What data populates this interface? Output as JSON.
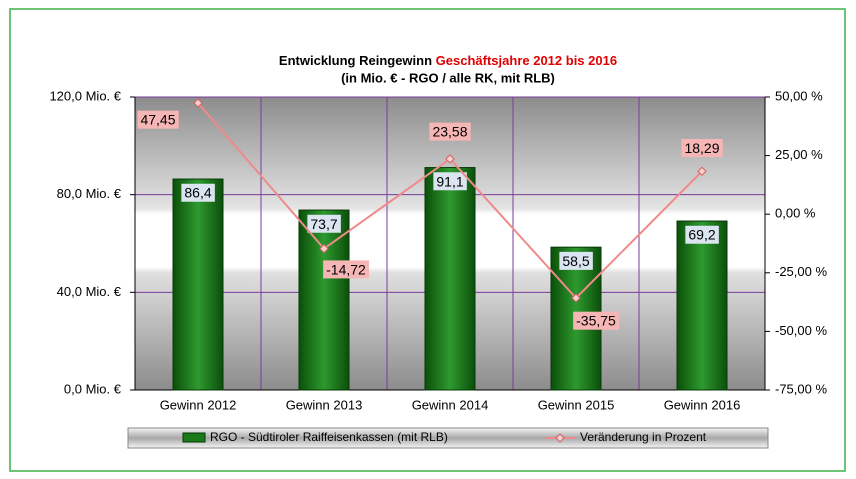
{
  "chart_data": {
    "type": "bar_line",
    "title": "Entwicklung Reingewinn",
    "title_highlight": "Geschäftsjahre 2012 bis 2016",
    "subtitle": "(in Mio. € - RGO / alle RK, mit RLB)",
    "categories": [
      "Gewinn 2012",
      "Gewinn 2013",
      "Gewinn 2014",
      "Gewinn 2015",
      "Gewinn 2016"
    ],
    "series": [
      {
        "name": "RGO - Südtiroler Raiffeisenkassen (mit RLB)",
        "type": "bar",
        "color": "#1a7a1a",
        "values": [
          86.4,
          73.7,
          91.1,
          58.5,
          69.2
        ],
        "value_labels": [
          "86,4",
          "73,7",
          "91,1",
          "58,5",
          "69,2"
        ]
      },
      {
        "name": "Veränderung in Prozent",
        "type": "line",
        "axis": "y2",
        "color": "#f08a8a",
        "values": [
          47.45,
          -14.72,
          23.58,
          -35.75,
          18.29
        ],
        "value_labels": [
          "47,45",
          "-14,72",
          "23,58",
          "-35,75",
          "18,29"
        ]
      }
    ],
    "ylim": [
      0,
      120
    ],
    "yticks": [
      {
        "value": 0,
        "label": "0,0 Mio. €"
      },
      {
        "value": 40,
        "label": "40,0 Mio. €"
      },
      {
        "value": 80,
        "label": "80,0 Mio. €"
      },
      {
        "value": 120,
        "label": "120,0 Mio. €"
      }
    ],
    "y2lim": [
      -75,
      50
    ],
    "y2ticks": [
      {
        "value": -75,
        "label": "-75,00 %"
      },
      {
        "value": -50,
        "label": "-50,00 %"
      },
      {
        "value": -25,
        "label": "-25,00 %"
      },
      {
        "value": 0,
        "label": "0,00 %"
      },
      {
        "value": 25,
        "label": "25,00 %"
      },
      {
        "value": 50,
        "label": "50,00 %"
      }
    ],
    "grid": true
  }
}
